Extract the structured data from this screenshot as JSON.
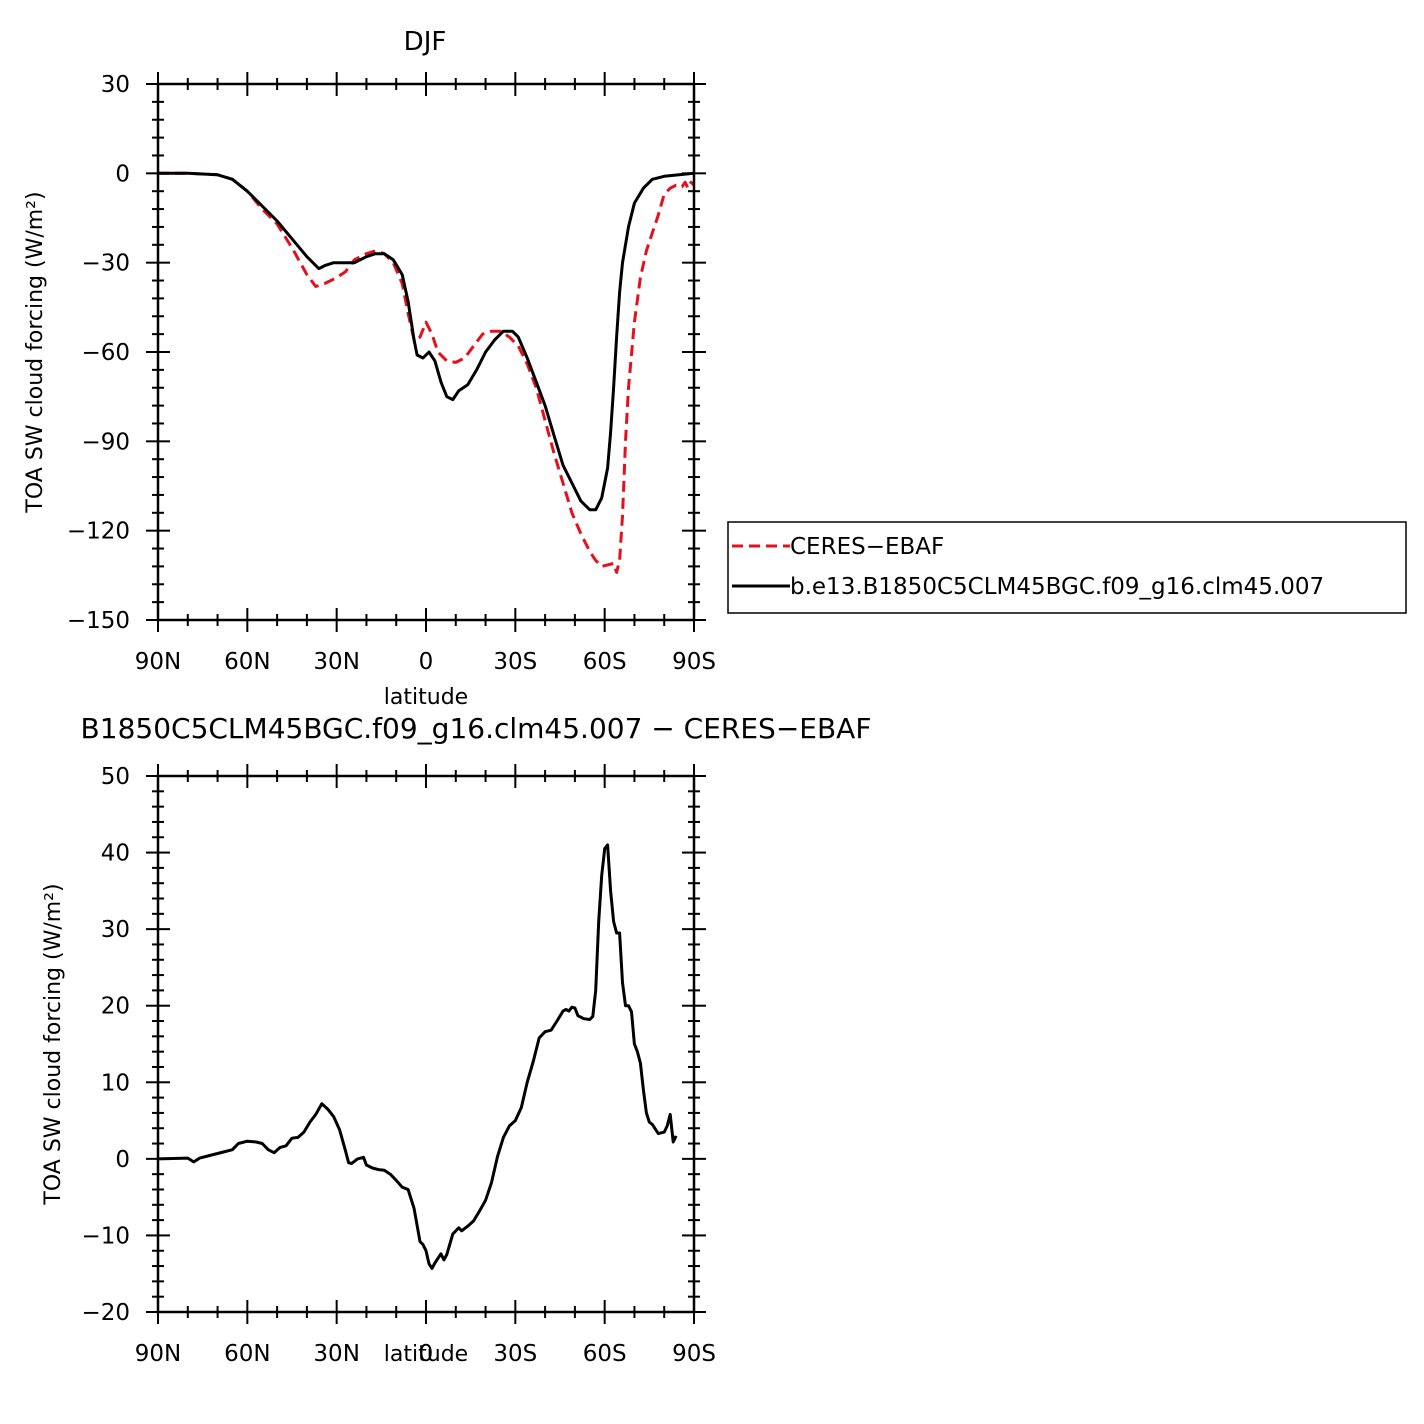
{
  "chart_data": [
    {
      "type": "line",
      "title": "DJF",
      "xlabel": "latitude",
      "ylabel": "TOA SW cloud forcing (W/m²)",
      "xlim": [
        90,
        -90
      ],
      "ylim": [
        -150,
        30
      ],
      "x_ticks": [
        {
          "value": 90,
          "label": "90N"
        },
        {
          "value": 60,
          "label": "60N"
        },
        {
          "value": 30,
          "label": "30N"
        },
        {
          "value": 0,
          "label": "0"
        },
        {
          "value": -30,
          "label": "30S"
        },
        {
          "value": -60,
          "label": "60S"
        },
        {
          "value": -90,
          "label": "90S"
        }
      ],
      "y_ticks": [
        {
          "value": 30,
          "label": "30"
        },
        {
          "value": 0,
          "label": "0"
        },
        {
          "value": -30,
          "label": "−30"
        },
        {
          "value": -60,
          "label": "−60"
        },
        {
          "value": -90,
          "label": "−90"
        },
        {
          "value": -120,
          "label": "−120"
        },
        {
          "value": -150,
          "label": "−150"
        }
      ],
      "legend_position": "right",
      "series": [
        {
          "name": "CERES−EBAF",
          "color": "#e4101e",
          "dash": "dashed",
          "points": [
            [
              90,
              0
            ],
            [
              80,
              0
            ],
            [
              70,
              -0.5
            ],
            [
              65,
              -2
            ],
            [
              60,
              -6
            ],
            [
              55,
              -12
            ],
            [
              50,
              -17
            ],
            [
              45,
              -25
            ],
            [
              40,
              -34
            ],
            [
              37,
              -38
            ],
            [
              34,
              -37
            ],
            [
              30,
              -35
            ],
            [
              27,
              -33
            ],
            [
              24,
              -29
            ],
            [
              20,
              -27
            ],
            [
              17,
              -26
            ],
            [
              14,
              -27
            ],
            [
              11,
              -30
            ],
            [
              8,
              -37
            ],
            [
              6,
              -47
            ],
            [
              4,
              -56
            ],
            [
              2,
              -55
            ],
            [
              0,
              -50
            ],
            [
              -2,
              -54
            ],
            [
              -4,
              -60
            ],
            [
              -7,
              -63
            ],
            [
              -10,
              -63.5
            ],
            [
              -13,
              -62
            ],
            [
              -16,
              -58
            ],
            [
              -19,
              -54
            ],
            [
              -22,
              -53
            ],
            [
              -25,
              -53
            ],
            [
              -28,
              -55
            ],
            [
              -31,
              -58
            ],
            [
              -34,
              -64
            ],
            [
              -37,
              -72
            ],
            [
              -40,
              -83
            ],
            [
              -43,
              -94
            ],
            [
              -46,
              -104
            ],
            [
              -49,
              -114
            ],
            [
              -52,
              -121
            ],
            [
              -55,
              -127
            ],
            [
              -57,
              -130
            ],
            [
              -59,
              -132
            ],
            [
              -61,
              -131.5
            ],
            [
              -63,
              -131
            ],
            [
              -64,
              -134
            ],
            [
              -65,
              -130
            ],
            [
              -66,
              -115
            ],
            [
              -67,
              -90
            ],
            [
              -68,
              -72
            ],
            [
              -70,
              -50
            ],
            [
              -72,
              -35
            ],
            [
              -74,
              -26
            ],
            [
              -76,
              -20
            ],
            [
              -78,
              -14
            ],
            [
              -80,
              -7
            ],
            [
              -82,
              -5
            ],
            [
              -84,
              -4
            ],
            [
              -86,
              -4.5
            ],
            [
              -87,
              -3
            ],
            [
              -88,
              -5
            ],
            [
              -89,
              -3
            ],
            [
              -90,
              -4
            ]
          ]
        },
        {
          "name": "b.e13.B1850C5CLM45BGC.f09_g16.clm45.007",
          "color": "#000000",
          "dash": "solid",
          "points": [
            [
              90,
              0
            ],
            [
              80,
              0
            ],
            [
              70,
              -0.5
            ],
            [
              65,
              -2
            ],
            [
              60,
              -6
            ],
            [
              55,
              -11
            ],
            [
              50,
              -16
            ],
            [
              45,
              -22
            ],
            [
              40,
              -28
            ],
            [
              36,
              -32
            ],
            [
              34,
              -31
            ],
            [
              31,
              -30
            ],
            [
              27,
              -30
            ],
            [
              24,
              -30
            ],
            [
              20,
              -28
            ],
            [
              17,
              -27
            ],
            [
              14,
              -27
            ],
            [
              11,
              -29
            ],
            [
              8,
              -34
            ],
            [
              6,
              -43
            ],
            [
              4,
              -56
            ],
            [
              3,
              -61
            ],
            [
              1,
              -62
            ],
            [
              -1,
              -60
            ],
            [
              -3,
              -63
            ],
            [
              -5,
              -70
            ],
            [
              -7,
              -75
            ],
            [
              -9,
              -76
            ],
            [
              -11,
              -73
            ],
            [
              -14,
              -71
            ],
            [
              -17,
              -66
            ],
            [
              -20,
              -60
            ],
            [
              -23,
              -56
            ],
            [
              -26,
              -53
            ],
            [
              -29,
              -53
            ],
            [
              -31,
              -55
            ],
            [
              -34,
              -62
            ],
            [
              -37,
              -70
            ],
            [
              -40,
              -78
            ],
            [
              -43,
              -88
            ],
            [
              -46,
              -98
            ],
            [
              -49,
              -104
            ],
            [
              -52,
              -110
            ],
            [
              -55,
              -113
            ],
            [
              -57,
              -113
            ],
            [
              -59,
              -109
            ],
            [
              -61,
              -99
            ],
            [
              -62,
              -87
            ],
            [
              -63,
              -72
            ],
            [
              -64,
              -55
            ],
            [
              -65,
              -40
            ],
            [
              -66,
              -30
            ],
            [
              -68,
              -18
            ],
            [
              -70,
              -10
            ],
            [
              -73,
              -5
            ],
            [
              -76,
              -2
            ],
            [
              -78,
              -1.5
            ],
            [
              -80,
              -1
            ],
            [
              -85,
              -0.5
            ],
            [
              -90,
              0
            ]
          ]
        }
      ]
    },
    {
      "type": "line",
      "title": "B1850C5CLM45BGC.f09_g16.clm45.007 − CERES−EBAF",
      "xlabel": "latitude",
      "ylabel": "TOA SW cloud forcing (W/m²)",
      "xlim": [
        90,
        -90
      ],
      "ylim": [
        -20,
        50
      ],
      "x_ticks": [
        {
          "value": 90,
          "label": "90N"
        },
        {
          "value": 60,
          "label": "60N"
        },
        {
          "value": 30,
          "label": "30N"
        },
        {
          "value": 0,
          "label": "0"
        },
        {
          "value": -30,
          "label": "30S"
        },
        {
          "value": -60,
          "label": "60S"
        },
        {
          "value": -90,
          "label": "90S"
        }
      ],
      "y_ticks": [
        {
          "value": 50,
          "label": "50"
        },
        {
          "value": 40,
          "label": "40"
        },
        {
          "value": 30,
          "label": "30"
        },
        {
          "value": 20,
          "label": "20"
        },
        {
          "value": 10,
          "label": "10"
        },
        {
          "value": 0,
          "label": "0"
        },
        {
          "value": -10,
          "label": "−10"
        },
        {
          "value": -20,
          "label": "−20"
        }
      ],
      "series": [
        {
          "color": "#000000",
          "dash": "solid",
          "points": [
            [
              90,
              0
            ],
            [
              80,
              0.1
            ],
            [
              78,
              -0.4
            ],
            [
              76,
              0.1
            ],
            [
              72,
              0.5
            ],
            [
              68,
              0.9
            ],
            [
              65,
              1.2
            ],
            [
              63,
              2
            ],
            [
              60,
              2.3
            ],
            [
              57,
              2.2
            ],
            [
              55,
              2
            ],
            [
              53,
              1.2
            ],
            [
              51,
              0.8
            ],
            [
              49,
              1.5
            ],
            [
              47,
              1.7
            ],
            [
              45,
              2.7
            ],
            [
              43,
              2.8
            ],
            [
              41,
              3.5
            ],
            [
              39,
              4.8
            ],
            [
              37,
              5.8
            ],
            [
              35,
              7.2
            ],
            [
              33,
              6.5
            ],
            [
              31,
              5.5
            ],
            [
              29,
              3.8
            ],
            [
              27,
              1
            ],
            [
              26,
              -0.5
            ],
            [
              25,
              -0.6
            ],
            [
              23,
              0
            ],
            [
              21,
              0.2
            ],
            [
              20,
              -0.8
            ],
            [
              18,
              -1.2
            ],
            [
              16,
              -1.4
            ],
            [
              14,
              -1.5
            ],
            [
              12,
              -2
            ],
            [
              10,
              -2.8
            ],
            [
              8,
              -3.7
            ],
            [
              6,
              -4
            ],
            [
              4,
              -6.5
            ],
            [
              2,
              -10.8
            ],
            [
              1,
              -11.2
            ],
            [
              0,
              -12
            ],
            [
              -1,
              -13.7
            ],
            [
              -2,
              -14.3
            ],
            [
              -3,
              -13.6
            ],
            [
              -5,
              -12.4
            ],
            [
              -6,
              -13.2
            ],
            [
              -7,
              -12.5
            ],
            [
              -9,
              -9.8
            ],
            [
              -11,
              -9
            ],
            [
              -12,
              -9.4
            ],
            [
              -14,
              -8.8
            ],
            [
              -16,
              -8.1
            ],
            [
              -18,
              -6.8
            ],
            [
              -20,
              -5.4
            ],
            [
              -22,
              -3.1
            ],
            [
              -24,
              0.3
            ],
            [
              -26,
              2.8
            ],
            [
              -28,
              4.3
            ],
            [
              -30,
              5
            ],
            [
              -32,
              6.7
            ],
            [
              -34,
              10
            ],
            [
              -36,
              12.7
            ],
            [
              -38,
              15.8
            ],
            [
              -40,
              16.6
            ],
            [
              -42,
              16.8
            ],
            [
              -44,
              18
            ],
            [
              -46,
              19.3
            ],
            [
              -47,
              19.5
            ],
            [
              -48,
              19.3
            ],
            [
              -49,
              19.8
            ],
            [
              -50,
              19.7
            ],
            [
              -51,
              18.7
            ],
            [
              -53,
              18.3
            ],
            [
              -55,
              18.2
            ],
            [
              -56,
              18.6
            ],
            [
              -57,
              22
            ],
            [
              -58,
              31
            ],
            [
              -59,
              37
            ],
            [
              -60,
              40.5
            ],
            [
              -61,
              41
            ],
            [
              -62,
              35
            ],
            [
              -63,
              31
            ],
            [
              -64,
              29.5
            ],
            [
              -65,
              29.5
            ],
            [
              -66,
              23
            ],
            [
              -67,
              20
            ],
            [
              -68,
              20
            ],
            [
              -69,
              19.2
            ],
            [
              -70,
              15
            ],
            [
              -71,
              14
            ],
            [
              -72,
              12.5
            ],
            [
              -73,
              9
            ],
            [
              -74,
              6
            ],
            [
              -75,
              4.8
            ],
            [
              -76,
              4.5
            ],
            [
              -78,
              3.3
            ],
            [
              -80,
              3.5
            ],
            [
              -81,
              4.3
            ],
            [
              -82,
              5.8
            ],
            [
              -83,
              2.2
            ],
            [
              -84,
              3
            ]
          ]
        }
      ]
    }
  ]
}
